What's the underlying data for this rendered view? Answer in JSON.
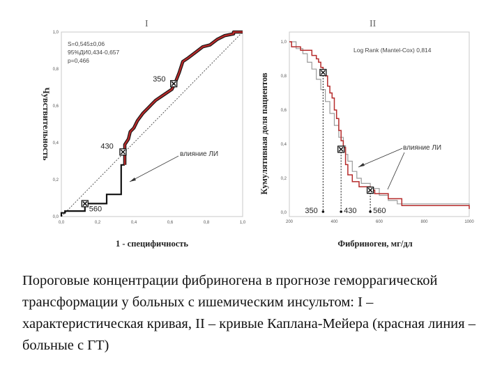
{
  "caption": "Пороговые концентрации фибриногена в прогнозе геморрагической трансформации у больных с ишемическим инсультом: I – характеристическая кривая, II – кривые Каплана-Мейера (красная линия – больные с ГТ)",
  "colors": {
    "red": "#b52a2a",
    "gray": "#9a9a9a",
    "dark": "#111111"
  },
  "chart_data": [
    {
      "type": "line",
      "panel_label": "I",
      "title": "",
      "xlabel": "1 - специфичность",
      "ylabel": "Чувствительность",
      "xlim": [
        0,
        1
      ],
      "ylim": [
        0,
        1
      ],
      "x_ticks": [
        "0,0",
        "0,2",
        "0,4",
        "0,6",
        "0,8",
        "1,0"
      ],
      "y_ticks": [
        "0,0",
        "0,2",
        "0,4",
        "0,6",
        "0,8",
        "1,0"
      ],
      "stats": [
        "S=0,545±0,06",
        "95%ДИ0,434-0,657",
        "p=0,466"
      ],
      "roc_lower": [
        [
          0,
          0
        ],
        [
          0,
          0.02
        ],
        [
          0.02,
          0.02
        ],
        [
          0.02,
          0.03
        ],
        [
          0.13,
          0.03
        ],
        [
          0.13,
          0.07
        ],
        [
          0.25,
          0.07
        ],
        [
          0.25,
          0.12
        ],
        [
          0.33,
          0.12
        ],
        [
          0.33,
          0.28
        ],
        [
          0.35,
          0.28
        ]
      ],
      "roc_upper": [
        [
          0.35,
          0.28
        ],
        [
          0.35,
          0.39
        ],
        [
          0.37,
          0.42
        ],
        [
          0.38,
          0.46
        ],
        [
          0.4,
          0.48
        ],
        [
          0.42,
          0.52
        ],
        [
          0.45,
          0.56
        ],
        [
          0.48,
          0.59
        ],
        [
          0.5,
          0.61
        ],
        [
          0.52,
          0.63
        ],
        [
          0.55,
          0.65
        ],
        [
          0.61,
          0.69
        ],
        [
          0.63,
          0.73
        ],
        [
          0.65,
          0.78
        ],
        [
          0.67,
          0.84
        ],
        [
          0.7,
          0.86
        ],
        [
          0.74,
          0.89
        ],
        [
          0.78,
          0.92
        ],
        [
          0.82,
          0.93
        ],
        [
          0.86,
          0.96
        ],
        [
          0.9,
          0.98
        ],
        [
          0.95,
          0.99
        ],
        [
          0.95,
          1.0
        ],
        [
          1.0,
          1.0
        ]
      ],
      "markers": [
        {
          "label": "560",
          "x": 0.13,
          "y": 0.07
        },
        {
          "label": "430",
          "x": 0.34,
          "y": 0.35
        },
        {
          "label": "350",
          "x": 0.62,
          "y": 0.72
        }
      ],
      "annotation": "влияние ЛИ"
    },
    {
      "type": "line",
      "panel_label": "II",
      "title": "",
      "xlabel": "Фибриноген, мг/дл",
      "ylabel": "Кумулятивная доля пациентов",
      "xlim": [
        200,
        1000
      ],
      "ylim": [
        0,
        1
      ],
      "x_ticks": [
        "200",
        "400",
        "600",
        "800",
        "1000"
      ],
      "y_ticks": [
        "0,0",
        "0,2",
        "0,4",
        "0,6",
        "0,8",
        "1,0"
      ],
      "stats": [
        "Log Rank (Mantel-Cox)  0,814"
      ],
      "series": [
        {
          "color": "red",
          "points": [
            [
              200,
              1.0
            ],
            [
              210,
              0.97
            ],
            [
              240,
              0.97
            ],
            [
              250,
              0.95
            ],
            [
              280,
              0.95
            ],
            [
              300,
              0.92
            ],
            [
              320,
              0.9
            ],
            [
              330,
              0.88
            ],
            [
              340,
              0.85
            ],
            [
              350,
              0.82
            ],
            [
              360,
              0.8
            ],
            [
              370,
              0.74
            ],
            [
              380,
              0.7
            ],
            [
              390,
              0.67
            ],
            [
              400,
              0.6
            ],
            [
              410,
              0.55
            ],
            [
              420,
              0.48
            ],
            [
              430,
              0.42
            ],
            [
              440,
              0.38
            ],
            [
              450,
              0.28
            ],
            [
              460,
              0.22
            ],
            [
              480,
              0.18
            ],
            [
              510,
              0.15
            ],
            [
              560,
              0.13
            ],
            [
              580,
              0.11
            ],
            [
              640,
              0.08
            ],
            [
              700,
              0.04
            ],
            [
              1000,
              0.02
            ]
          ]
        },
        {
          "color": "gray",
          "points": [
            [
              200,
              1.0
            ],
            [
              230,
              0.96
            ],
            [
              260,
              0.93
            ],
            [
              280,
              0.88
            ],
            [
              300,
              0.84
            ],
            [
              320,
              0.78
            ],
            [
              340,
              0.72
            ],
            [
              360,
              0.65
            ],
            [
              380,
              0.58
            ],
            [
              400,
              0.51
            ],
            [
              420,
              0.44
            ],
            [
              440,
              0.39
            ],
            [
              450,
              0.34
            ],
            [
              460,
              0.3
            ],
            [
              480,
              0.24
            ],
            [
              500,
              0.2
            ],
            [
              520,
              0.17
            ],
            [
              560,
              0.14
            ],
            [
              600,
              0.1
            ],
            [
              640,
              0.07
            ],
            [
              680,
              0.05
            ],
            [
              1000,
              0.04
            ]
          ]
        }
      ],
      "markers": [
        {
          "label": "350",
          "x": 350,
          "y": 0.82
        },
        {
          "label": "430",
          "x": 430,
          "y": 0.37
        },
        {
          "label": "560",
          "x": 560,
          "y": 0.13
        }
      ],
      "annotation": "влияние ЛИ"
    }
  ]
}
